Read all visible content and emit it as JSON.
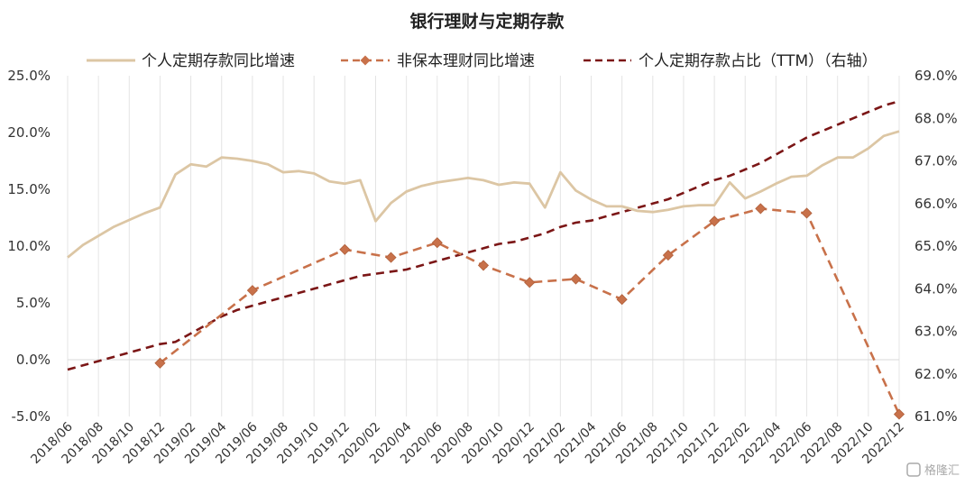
{
  "chart_data": {
    "type": "line",
    "title": "银行理财与定期存款",
    "x": [
      "2018/06",
      "2018/07",
      "2018/08",
      "2018/09",
      "2018/10",
      "2018/11",
      "2018/12",
      "2019/01",
      "2019/02",
      "2019/03",
      "2019/04",
      "2019/05",
      "2019/06",
      "2019/07",
      "2019/08",
      "2019/09",
      "2019/10",
      "2019/11",
      "2019/12",
      "2020/01",
      "2020/02",
      "2020/03",
      "2020/04",
      "2020/05",
      "2020/06",
      "2020/07",
      "2020/08",
      "2020/09",
      "2020/10",
      "2020/11",
      "2020/12",
      "2021/01",
      "2021/02",
      "2021/03",
      "2021/04",
      "2021/05",
      "2021/06",
      "2021/07",
      "2021/08",
      "2021/09",
      "2021/10",
      "2021/11",
      "2021/12",
      "2022/01",
      "2022/02",
      "2022/03",
      "2022/04",
      "2022/05",
      "2022/06",
      "2022/07",
      "2022/08",
      "2022/09",
      "2022/10",
      "2022/11",
      "2022/12"
    ],
    "xticks": [
      "2018/06",
      "2018/08",
      "2018/10",
      "2018/12",
      "2019/02",
      "2019/04",
      "2019/06",
      "2019/08",
      "2019/10",
      "2019/12",
      "2020/02",
      "2020/04",
      "2020/06",
      "2020/08",
      "2020/10",
      "2020/12",
      "2021/02",
      "2021/04",
      "2021/06",
      "2021/08",
      "2021/10",
      "2021/12",
      "2022/02",
      "2022/04",
      "2022/06",
      "2022/08",
      "2022/10",
      "2022/12"
    ],
    "ylim_left": [
      -5,
      25
    ],
    "yticks_left": [
      "-5.0%",
      "0.0%",
      "5.0%",
      "10.0%",
      "15.0%",
      "20.0%",
      "25.0%"
    ],
    "ylim_right": [
      61,
      69
    ],
    "yticks_right": [
      "61.0%",
      "62.0%",
      "63.0%",
      "64.0%",
      "65.0%",
      "66.0%",
      "67.0%",
      "68.0%",
      "69.0%"
    ],
    "grid": "vertical",
    "legend_position": "top",
    "series": [
      {
        "name": "个人定期存款同比增速",
        "axis": "left",
        "style": "solid",
        "color": "#dcc6a4",
        "values": [
          9.0,
          10.1,
          10.9,
          11.7,
          12.3,
          12.9,
          13.4,
          16.3,
          17.2,
          17.0,
          17.8,
          17.7,
          17.5,
          17.2,
          16.5,
          16.6,
          16.4,
          15.7,
          15.5,
          15.8,
          12.2,
          13.8,
          14.8,
          15.3,
          15.6,
          15.8,
          16.0,
          15.8,
          15.4,
          15.6,
          15.5,
          13.4,
          16.5,
          14.9,
          14.1,
          13.5,
          13.5,
          13.1,
          13.0,
          13.2,
          13.5,
          13.6,
          13.6,
          15.6,
          14.2,
          14.8,
          15.5,
          16.1,
          16.2,
          17.1,
          17.8,
          17.8,
          18.6,
          19.7,
          20.1
        ]
      },
      {
        "name": "非保本理财同比增速",
        "axis": "left",
        "style": "dashed-marker",
        "color": "#c8714a",
        "points": [
          {
            "x": "2018/12",
            "y": -0.3
          },
          {
            "x": "2019/06",
            "y": 6.1
          },
          {
            "x": "2019/12",
            "y": 9.7
          },
          {
            "x": "2020/03",
            "y": 9.0
          },
          {
            "x": "2020/06",
            "y": 10.3
          },
          {
            "x": "2020/09",
            "y": 8.3
          },
          {
            "x": "2020/12",
            "y": 6.8
          },
          {
            "x": "2021/03",
            "y": 7.1
          },
          {
            "x": "2021/06",
            "y": 5.3
          },
          {
            "x": "2021/09",
            "y": 9.2
          },
          {
            "x": "2021/12",
            "y": 12.2
          },
          {
            "x": "2022/03",
            "y": 13.3
          },
          {
            "x": "2022/06",
            "y": 12.9
          },
          {
            "x": "2022/12",
            "y": -4.8
          }
        ]
      },
      {
        "name": "个人定期存款占比（TTM）（右轴）",
        "axis": "right",
        "style": "dashed",
        "color": "#7b1616",
        "values": [
          62.1,
          62.2,
          62.3,
          62.4,
          62.5,
          62.6,
          62.7,
          62.75,
          62.95,
          63.15,
          63.35,
          63.5,
          63.6,
          63.7,
          63.8,
          63.9,
          64.0,
          64.1,
          64.2,
          64.3,
          64.35,
          64.4,
          64.45,
          64.55,
          64.65,
          64.75,
          64.85,
          64.95,
          65.05,
          65.1,
          65.2,
          65.3,
          65.45,
          65.55,
          65.6,
          65.7,
          65.8,
          65.9,
          66.0,
          66.1,
          66.25,
          66.4,
          66.55,
          66.65,
          66.8,
          66.95,
          67.15,
          67.35,
          67.55,
          67.7,
          67.85,
          68.0,
          68.15,
          68.3,
          68.4
        ]
      }
    ],
    "watermark": "格隆汇"
  }
}
